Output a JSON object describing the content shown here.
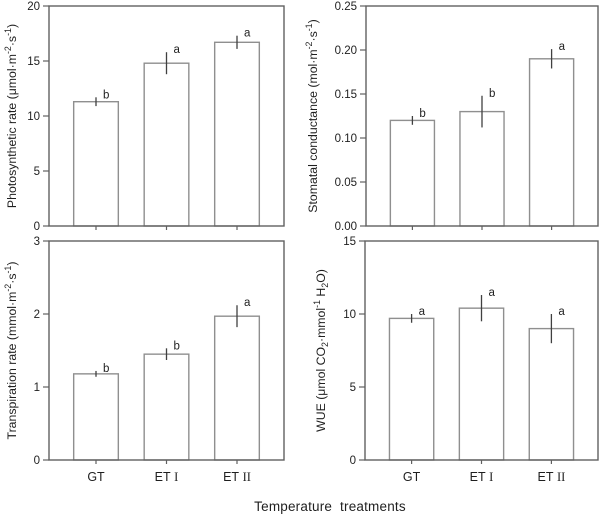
{
  "figure": {
    "x_axis_title": "Temperature  treatments",
    "background": "#ffffff"
  },
  "colors": {
    "axis": "#606060",
    "tick": "#606060",
    "bar_outline": "#8f8f8f",
    "bar_fill": "#ffffff",
    "error_bar": "#404040",
    "text": "#1f1f1f"
  },
  "category_labels": [
    {
      "text": "GT",
      "numeral": ""
    },
    {
      "text": "ET",
      "numeral": "I"
    },
    {
      "text": "ET",
      "numeral": "II"
    }
  ],
  "chart_data": [
    {
      "type": "bar",
      "position": "top-left",
      "ylabel": "Photosynthetic rate (μmol·m⁻²·s⁻¹)",
      "ylabel_parts": [
        {
          "t": "Photosynthetic rate (μmol·m"
        },
        {
          "t": "-2",
          "sup": true
        },
        {
          "t": "·s"
        },
        {
          "t": "-1",
          "sup": true
        },
        {
          "t": ")"
        }
      ],
      "categories": [
        "GT",
        "ET I",
        "ET II"
      ],
      "values": [
        11.3,
        14.8,
        16.7
      ],
      "errors": [
        0.4,
        1.0,
        0.6
      ],
      "sig_letters": [
        "b",
        "a",
        "a"
      ],
      "ylim": [
        0,
        20
      ],
      "yticks": [
        "0",
        "5",
        "10",
        "15",
        "20"
      ],
      "show_x_labels": false
    },
    {
      "type": "bar",
      "position": "top-right",
      "ylabel": "Stomatal conductance (mol·m⁻²·s⁻¹)",
      "ylabel_parts": [
        {
          "t": "Stomatal conductance (mol·m"
        },
        {
          "t": "-2",
          "sup": true
        },
        {
          "t": "·s"
        },
        {
          "t": "-1",
          "sup": true
        },
        {
          "t": ")"
        }
      ],
      "categories": [
        "GT",
        "ET I",
        "ET II"
      ],
      "values": [
        0.12,
        0.13,
        0.19
      ],
      "errors": [
        0.005,
        0.018,
        0.011
      ],
      "sig_letters": [
        "b",
        "b",
        "a"
      ],
      "ylim": [
        0,
        0.25
      ],
      "yticks": [
        "0.00",
        "0.05",
        "0.10",
        "0.15",
        "0.20",
        "0.25"
      ],
      "show_x_labels": false
    },
    {
      "type": "bar",
      "position": "bottom-left",
      "ylabel": "Transpiration rate (mmol·m⁻²·s⁻¹)",
      "ylabel_parts": [
        {
          "t": "Transpiration rate (mmol·m"
        },
        {
          "t": "-2",
          "sup": true
        },
        {
          "t": "·s"
        },
        {
          "t": "-1",
          "sup": true
        },
        {
          "t": ")"
        }
      ],
      "categories": [
        "GT",
        "ET I",
        "ET II"
      ],
      "values": [
        1.18,
        1.45,
        1.97
      ],
      "errors": [
        0.04,
        0.08,
        0.15
      ],
      "sig_letters": [
        "b",
        "b",
        "a"
      ],
      "ylim": [
        0,
        3
      ],
      "yticks": [
        "0",
        "1",
        "2",
        "3"
      ],
      "show_x_labels": true
    },
    {
      "type": "bar",
      "position": "bottom-right",
      "ylabel": "WUE (μmol CO₂·mmol⁻¹ H₂O)",
      "ylabel_parts": [
        {
          "t": "WUE (μmol CO"
        },
        {
          "t": "2",
          "sub": true
        },
        {
          "t": "·mmol"
        },
        {
          "t": "-1",
          "sup": true
        },
        {
          "t": " H"
        },
        {
          "t": "2",
          "sub": true
        },
        {
          "t": "O)"
        }
      ],
      "categories": [
        "GT",
        "ET I",
        "ET II"
      ],
      "values": [
        9.7,
        10.4,
        9.0
      ],
      "errors": [
        0.3,
        0.9,
        1.0
      ],
      "sig_letters": [
        "a",
        "a",
        "a"
      ],
      "ylim": [
        0,
        15
      ],
      "yticks": [
        "0",
        "5",
        "10",
        "15"
      ],
      "show_x_labels": true
    }
  ]
}
